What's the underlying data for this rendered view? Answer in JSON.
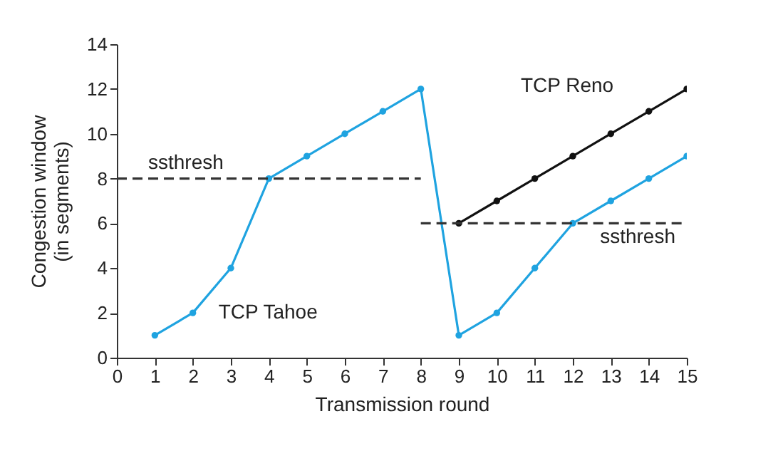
{
  "chart_data": {
    "type": "line",
    "xlabel": "Transmission round",
    "ylabel": "Congestion window\n(in segments)",
    "xlim": [
      0,
      15
    ],
    "xticks": [
      0,
      1,
      2,
      3,
      4,
      5,
      6,
      7,
      8,
      9,
      10,
      11,
      12,
      13,
      14,
      15
    ],
    "ylim": [
      0,
      14
    ],
    "yticks": [
      0,
      2,
      4,
      6,
      8,
      10,
      12,
      14
    ],
    "grid": false,
    "series": [
      {
        "name": "TCP Tahoe",
        "color": "#1fa3e0",
        "marker": "circle",
        "line_style": "solid",
        "x": [
          1,
          2,
          3,
          4,
          5,
          6,
          7,
          8,
          9,
          10,
          11,
          12,
          13,
          14,
          15
        ],
        "values": [
          1,
          2,
          4,
          8,
          9,
          10,
          11,
          12,
          1,
          2,
          4,
          6,
          7,
          8,
          9
        ]
      },
      {
        "name": "TCP Reno",
        "color": "#111111",
        "marker": "circle",
        "line_style": "solid",
        "x": [
          9,
          10,
          11,
          12,
          13,
          14,
          15
        ],
        "values": [
          6,
          7,
          8,
          9,
          10,
          11,
          12
        ]
      },
      {
        "name": "ssthresh",
        "color": "#333333",
        "marker": "none",
        "line_style": "dashed",
        "x": [
          0,
          8
        ],
        "values": [
          8,
          8
        ]
      },
      {
        "name": "ssthresh",
        "color": "#333333",
        "marker": "none",
        "line_style": "dashed",
        "x": [
          8,
          15
        ],
        "values": [
          6,
          6
        ]
      }
    ]
  }
}
